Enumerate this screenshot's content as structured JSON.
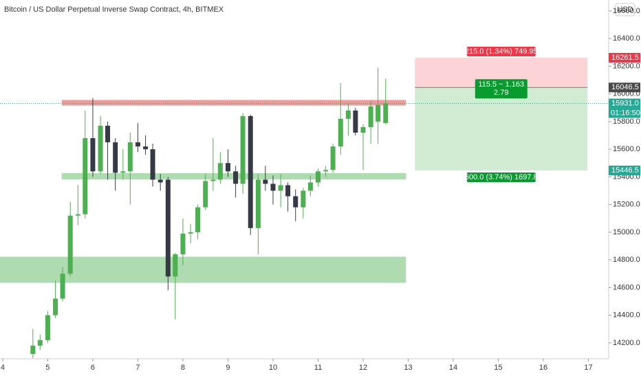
{
  "chart_data": {
    "type": "candlestick",
    "title": "Bitcoin / US Dollar Perpetual Inverse Swap Contract, 4h, BITMEX",
    "currency": "USD",
    "x": [
      4.67,
      4.83,
      5,
      5.17,
      5.33,
      5.5,
      5.67,
      5.83,
      6,
      6.17,
      6.33,
      6.5,
      6.67,
      6.83,
      7,
      7.17,
      7.33,
      7.5,
      7.67,
      7.83,
      8,
      8.17,
      8.33,
      8.5,
      8.67,
      8.83,
      9,
      9.17,
      9.33,
      9.5,
      9.67,
      9.83,
      10,
      10.17,
      10.33,
      10.5,
      10.67,
      10.83,
      11,
      11.17,
      11.33,
      11.5,
      11.67,
      11.83,
      12,
      12.17,
      12.33,
      12.5
    ],
    "open": [
      14120,
      14180,
      14220,
      14400,
      14520,
      14700,
      15120,
      15130,
      15680,
      15440,
      15770,
      15650,
      15430,
      15440,
      15650,
      15620,
      15600,
      15380,
      15380,
      14680,
      14840,
      14990,
      15000,
      15180,
      15370,
      15380,
      15500,
      15440,
      15350,
      15840,
      15030,
      15380,
      15350,
      15300,
      15340,
      15260,
      15180,
      15300,
      15360,
      15440,
      15450,
      15620,
      15820,
      15880,
      15720,
      15760,
      15800,
      15790
    ],
    "high": [
      14300,
      14260,
      14430,
      14650,
      14750,
      15220,
      15340,
      15880,
      15970,
      15840,
      15800,
      15680,
      15600,
      15720,
      15790,
      15700,
      15640,
      15420,
      15400,
      14850,
      15100,
      15060,
      15200,
      15420,
      15680,
      15580,
      15600,
      15480,
      15860,
      15850,
      15420,
      15480,
      15410,
      15420,
      15360,
      15310,
      15320,
      15410,
      15460,
      15480,
      15640,
      16080,
      15930,
      15900,
      15780,
      15950,
      16190,
      16110
    ],
    "low": [
      14090,
      14150,
      14200,
      14380,
      14500,
      14680,
      15050,
      15100,
      15400,
      15420,
      15380,
      15300,
      15380,
      15200,
      15580,
      15560,
      15330,
      15300,
      14580,
      14370,
      14760,
      14920,
      14950,
      15160,
      15300,
      15350,
      15400,
      15250,
      15280,
      14980,
      14840,
      15300,
      15200,
      15180,
      15150,
      15080,
      15100,
      15260,
      15330,
      15400,
      15430,
      15560,
      15700,
      15700,
      15450,
      15640,
      15640,
      15780
    ],
    "close": [
      14180,
      14220,
      14400,
      14520,
      14700,
      15120,
      15130,
      15680,
      15440,
      15770,
      15650,
      15430,
      15440,
      15650,
      15620,
      15600,
      15380,
      15360,
      14680,
      14840,
      14990,
      15000,
      15180,
      15370,
      15380,
      15500,
      15440,
      15350,
      15840,
      15030,
      15380,
      15350,
      15300,
      15340,
      15260,
      15180,
      15300,
      15360,
      15440,
      15450,
      15620,
      15820,
      15880,
      15720,
      15760,
      15910,
      15920,
      15931
    ],
    "up_color": "#4caf50",
    "down_color": "#363a45",
    "xlim": [
      3.94,
      17.45
    ],
    "ylim": [
      14085,
      16679
    ],
    "xticks": [
      4,
      5,
      6,
      7,
      8,
      9,
      10,
      11,
      12,
      13,
      14,
      15,
      16,
      17
    ],
    "yticks": [
      {
        "value": 14200,
        "label": "14200.0"
      },
      {
        "value": 14400,
        "label": "14400.0"
      },
      {
        "value": 14600,
        "label": "14600.0"
      },
      {
        "value": 14800,
        "label": "14800.0"
      },
      {
        "value": 15000,
        "label": "15000.0"
      },
      {
        "value": 15200,
        "label": "15200.0"
      },
      {
        "value": 15400,
        "label": "15400.0"
      },
      {
        "value": 15600,
        "label": "15600.0"
      },
      {
        "value": 15800,
        "label": "15800.0"
      },
      {
        "value": 16000,
        "label": "16000.0"
      },
      {
        "value": 16200,
        "label": "16200.0"
      },
      {
        "value": 16400,
        "label": "16400.0"
      },
      {
        "value": 16600,
        "label": "16600.0"
      }
    ],
    "zones": [
      {
        "low": 15916,
        "high": 15956,
        "x_start": 5.31,
        "x_end": 12.95,
        "color": "rgba(239,83,80,0.6)"
      },
      {
        "low": 15382,
        "high": 15427,
        "x_start": 5.31,
        "x_end": 12.95,
        "color": "rgba(76,175,80,0.45)"
      },
      {
        "low": 14634,
        "high": 14823,
        "x_start": 3.94,
        "x_end": 12.95,
        "color": "rgba(76,175,80,0.45)"
      }
    ],
    "last_price": 15931.0,
    "countdown": "01:16:50",
    "position": {
      "entry": 16046.5,
      "stop": 16261.5,
      "target": 15446.5,
      "x_start": 13.15,
      "x_end": 16.98,
      "stop_label": "215.0 (1.34%) 749.95",
      "ratio_label": [
        "115.5 ~ 1.163",
        "2.79"
      ],
      "target_label": "600.0 (3.74%) 1697.8"
    },
    "price_tags": [
      {
        "value": 16261.5,
        "label": "16261.5",
        "color": "#f23645"
      },
      {
        "value": 16046.5,
        "label": "16046.5",
        "color": "#4a4a4a"
      },
      {
        "value": 15931.0,
        "label": "15931.0",
        "color": "#22ab94"
      },
      {
        "value": 15446.5,
        "label": "15446.5",
        "color": "#22ab94"
      }
    ]
  }
}
